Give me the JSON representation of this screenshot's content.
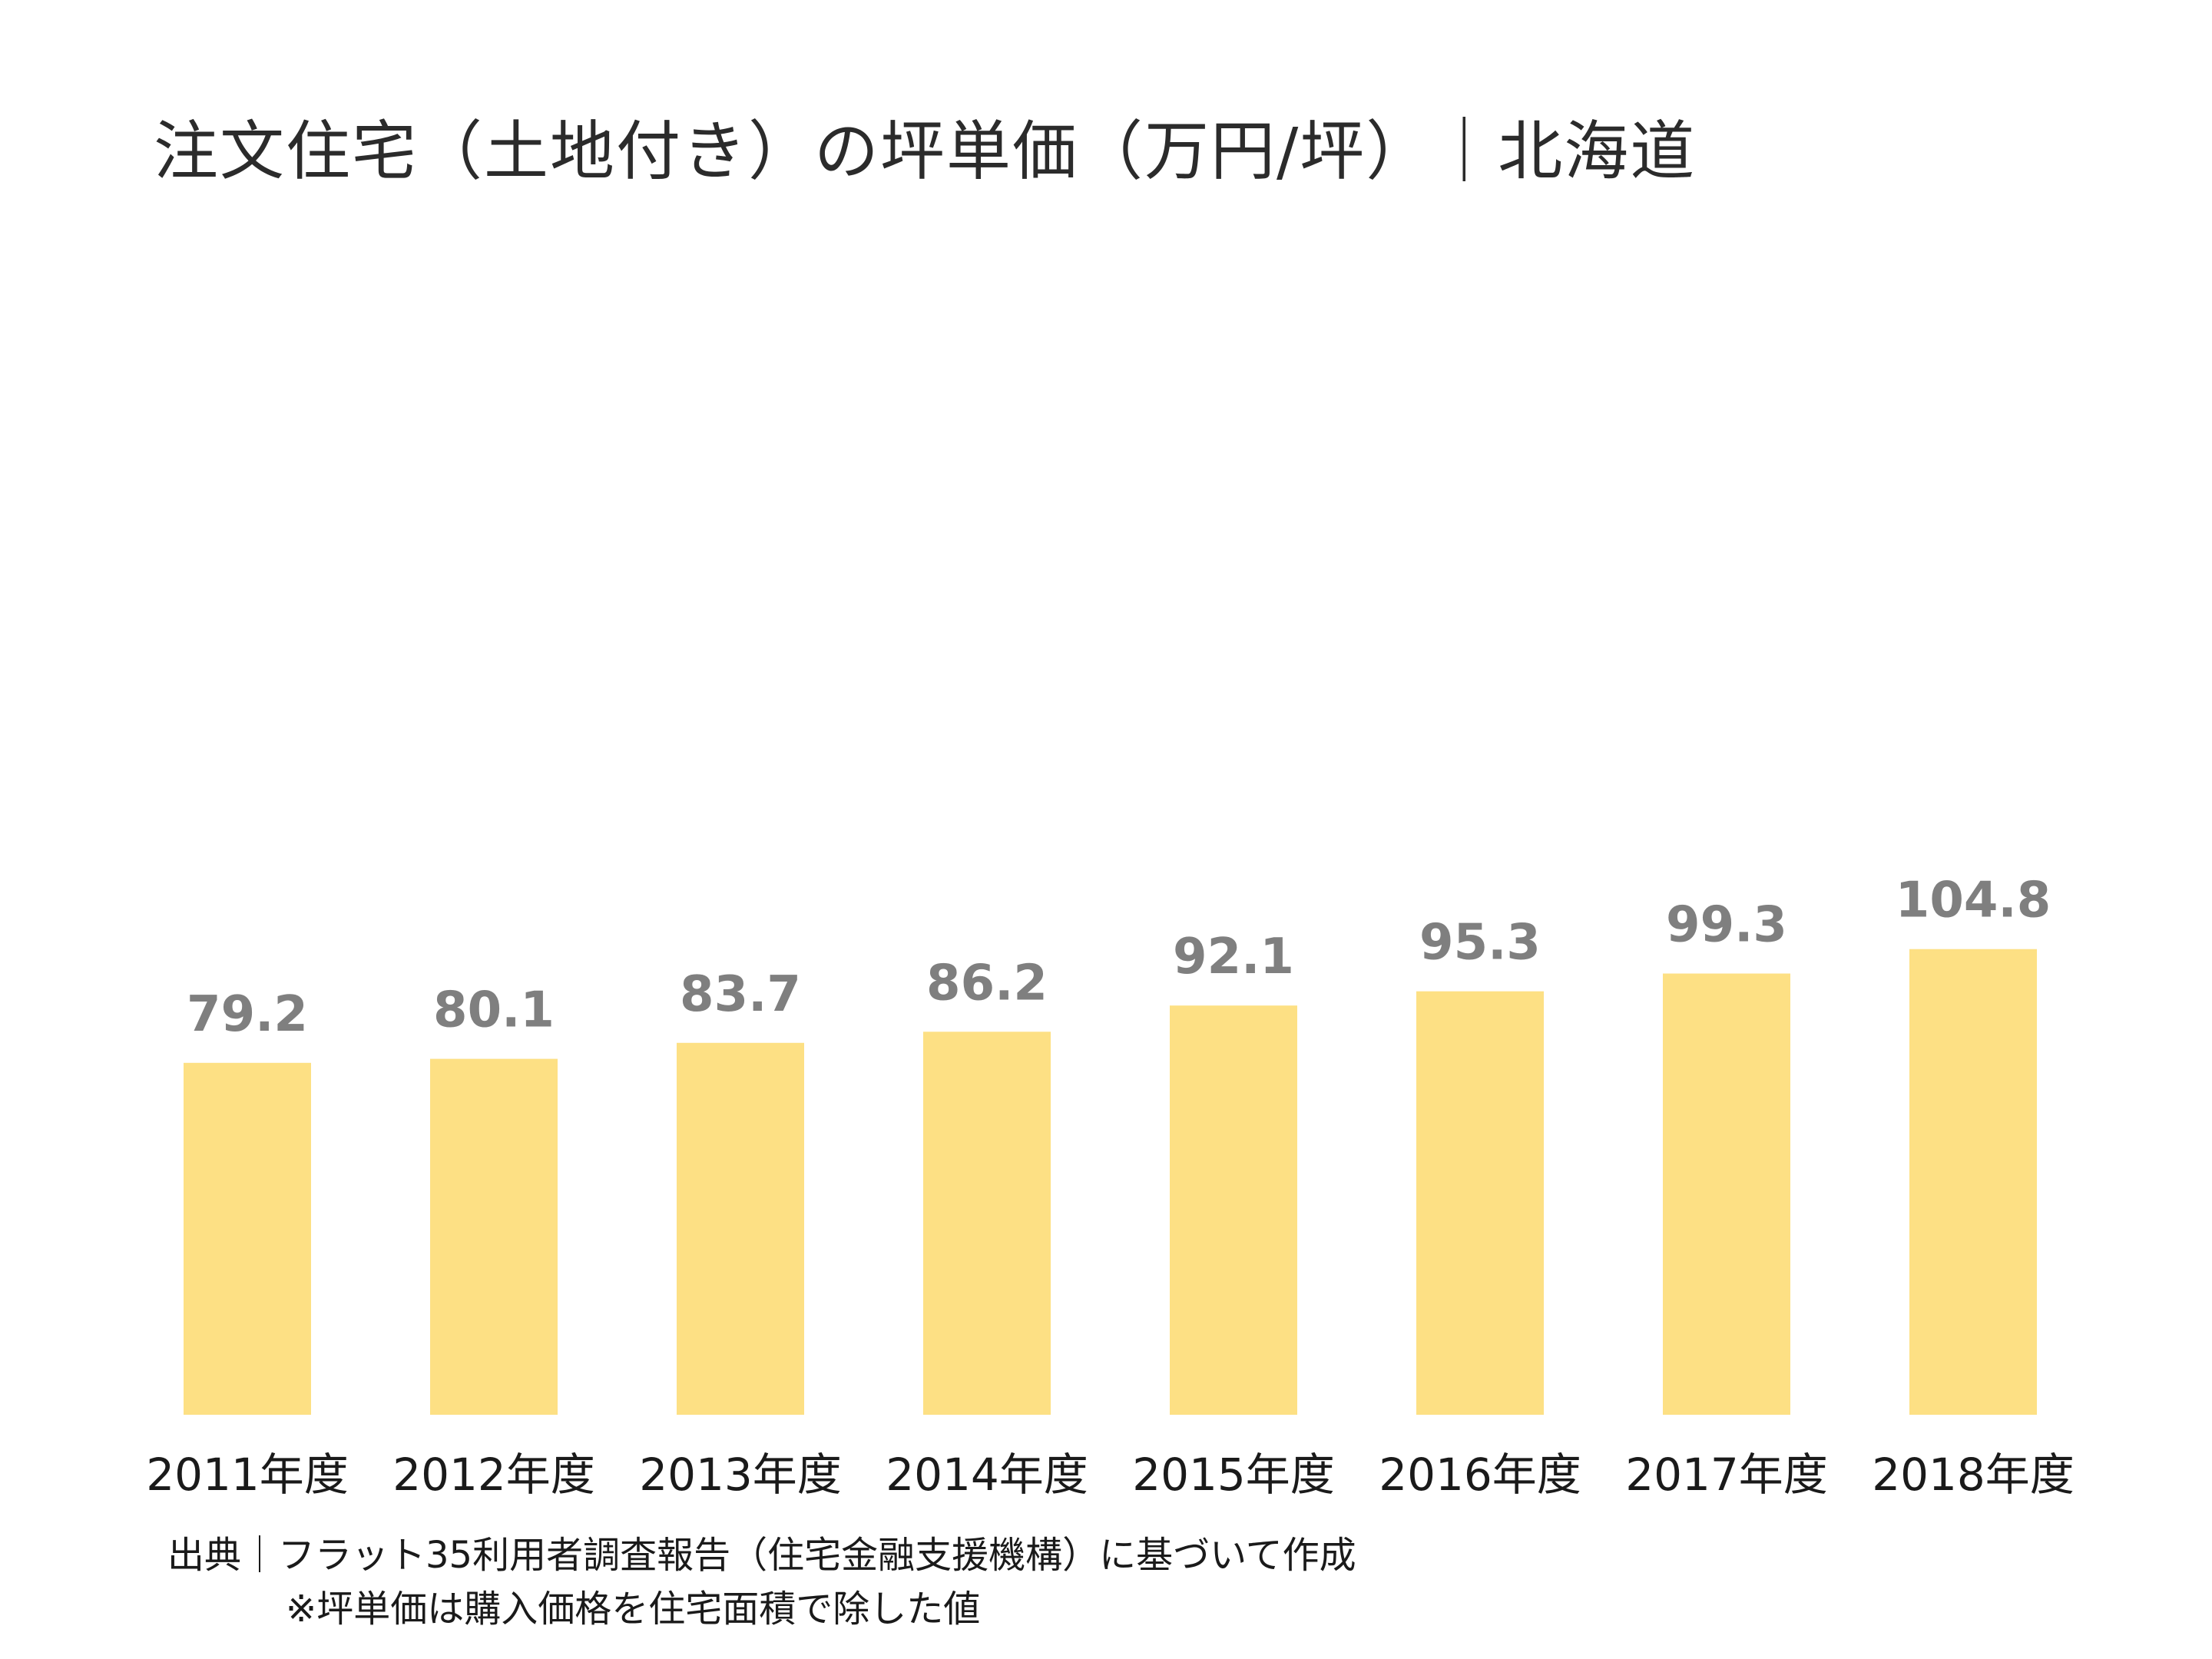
{
  "chart_data": {
    "type": "bar",
    "title": "注文住宅（土地付き）の坪単価（万円/坪）｜北海道",
    "categories": [
      "2011年度",
      "2012年度",
      "2013年度",
      "2014年度",
      "2015年度",
      "2016年度",
      "2017年度",
      "2018年度"
    ],
    "values": [
      79.2,
      80.1,
      83.7,
      86.2,
      92.1,
      95.3,
      99.3,
      104.8
    ],
    "value_labels": [
      "79.2",
      "80.1",
      "83.7",
      "86.2",
      "92.1",
      "95.3",
      "99.3",
      "104.8"
    ],
    "xlabel": "",
    "ylabel": "",
    "ylim": [
      0,
      270
    ],
    "grid": false,
    "legend": "none",
    "colors": {
      "bar": "#fde084",
      "value_label": "#7f7f7f",
      "text": "#1a1a1a"
    }
  },
  "footer": {
    "source": "出典｜フラット35利用者調査報告（住宅金融支援機構）に基づいて作成",
    "note": "※坪単価は購入価格を住宅面積で除した値"
  }
}
